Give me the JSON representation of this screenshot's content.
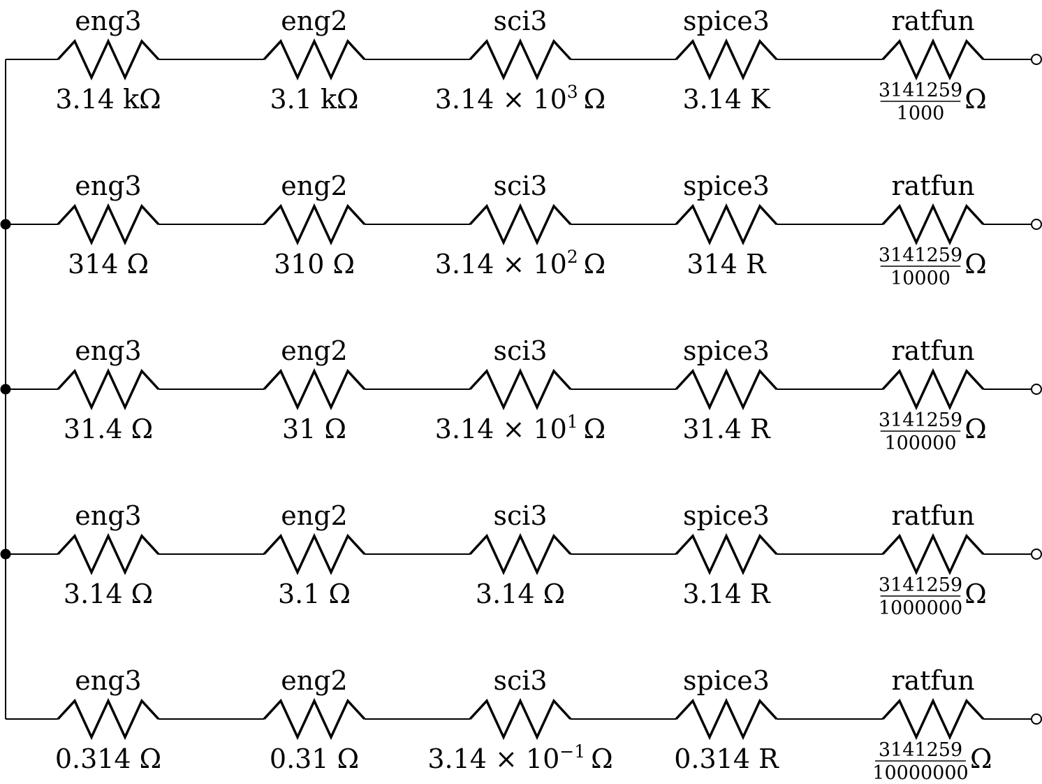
{
  "diagram": {
    "type": "resistor-formatting-circuit",
    "rows": [
      {
        "resistors": [
          {
            "name": "eng3",
            "value": {
              "kind": "plain",
              "text": "3.14 kΩ"
            }
          },
          {
            "name": "eng2",
            "value": {
              "kind": "plain",
              "text": "3.1 kΩ"
            }
          },
          {
            "name": "sci3",
            "value": {
              "kind": "sci",
              "mantissa": "3.14 × 10",
              "exp": "3",
              "unit": "Ω"
            }
          },
          {
            "name": "spice3",
            "value": {
              "kind": "plain",
              "text": "3.14 K"
            }
          },
          {
            "name": "ratfun",
            "value": {
              "kind": "frac",
              "num": "3141259",
              "den": "1000",
              "unit": "Ω"
            }
          }
        ]
      },
      {
        "resistors": [
          {
            "name": "eng3",
            "value": {
              "kind": "plain",
              "text": "314 Ω"
            }
          },
          {
            "name": "eng2",
            "value": {
              "kind": "plain",
              "text": "310 Ω"
            }
          },
          {
            "name": "sci3",
            "value": {
              "kind": "sci",
              "mantissa": "3.14 × 10",
              "exp": "2",
              "unit": "Ω"
            }
          },
          {
            "name": "spice3",
            "value": {
              "kind": "plain",
              "text": "314 R"
            }
          },
          {
            "name": "ratfun",
            "value": {
              "kind": "frac",
              "num": "3141259",
              "den": "10000",
              "unit": "Ω"
            }
          }
        ]
      },
      {
        "resistors": [
          {
            "name": "eng3",
            "value": {
              "kind": "plain",
              "text": "31.4 Ω"
            }
          },
          {
            "name": "eng2",
            "value": {
              "kind": "plain",
              "text": "31 Ω"
            }
          },
          {
            "name": "sci3",
            "value": {
              "kind": "sci",
              "mantissa": "3.14 × 10",
              "exp": "1",
              "unit": "Ω"
            }
          },
          {
            "name": "spice3",
            "value": {
              "kind": "plain",
              "text": "31.4 R"
            }
          },
          {
            "name": "ratfun",
            "value": {
              "kind": "frac",
              "num": "3141259",
              "den": "100000",
              "unit": "Ω"
            }
          }
        ]
      },
      {
        "resistors": [
          {
            "name": "eng3",
            "value": {
              "kind": "plain",
              "text": "3.14 Ω"
            }
          },
          {
            "name": "eng2",
            "value": {
              "kind": "plain",
              "text": "3.1 Ω"
            }
          },
          {
            "name": "sci3",
            "value": {
              "kind": "plain",
              "text": "3.14 Ω"
            }
          },
          {
            "name": "spice3",
            "value": {
              "kind": "plain",
              "text": "3.14 R"
            }
          },
          {
            "name": "ratfun",
            "value": {
              "kind": "frac",
              "num": "3141259",
              "den": "1000000",
              "unit": "Ω"
            }
          }
        ]
      },
      {
        "resistors": [
          {
            "name": "eng3",
            "value": {
              "kind": "plain",
              "text": "0.314 Ω"
            }
          },
          {
            "name": "eng2",
            "value": {
              "kind": "plain",
              "text": "0.31 Ω"
            }
          },
          {
            "name": "sci3",
            "value": {
              "kind": "sci",
              "mantissa": "3.14 × 10",
              "exp": "−1",
              "unit": "Ω"
            }
          },
          {
            "name": "spice3",
            "value": {
              "kind": "plain",
              "text": "0.314 R"
            }
          },
          {
            "name": "ratfun",
            "value": {
              "kind": "frac",
              "num": "3141259",
              "den": "10000000",
              "unit": "Ω"
            }
          }
        ]
      }
    ]
  }
}
